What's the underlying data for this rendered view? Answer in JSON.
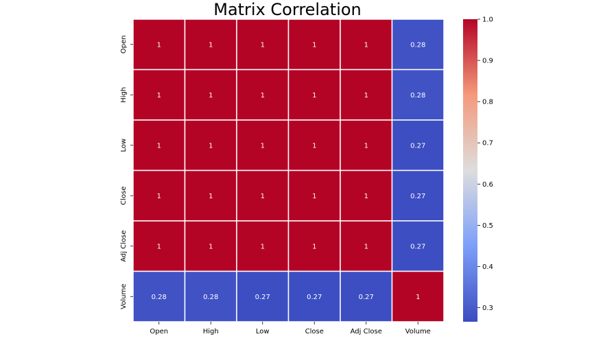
{
  "chart_data": {
    "type": "heatmap",
    "title": "Matrix Correlation",
    "x_labels": [
      "Open",
      "High",
      "Low",
      "Close",
      "Adj Close",
      "Volume"
    ],
    "y_labels": [
      "Open",
      "High",
      "Low",
      "Close",
      "Adj Close",
      "Volume"
    ],
    "values": [
      [
        1,
        1,
        1,
        1,
        1,
        0.28
      ],
      [
        1,
        1,
        1,
        1,
        1,
        0.28
      ],
      [
        1,
        1,
        1,
        1,
        1,
        0.27
      ],
      [
        1,
        1,
        1,
        1,
        1,
        0.27
      ],
      [
        1,
        1,
        1,
        1,
        1,
        0.27
      ],
      [
        0.28,
        0.28,
        0.27,
        0.27,
        0.27,
        1
      ]
    ],
    "cell_labels": [
      [
        "1",
        "1",
        "1",
        "1",
        "1",
        "0.28"
      ],
      [
        "1",
        "1",
        "1",
        "1",
        "1",
        "0.28"
      ],
      [
        "1",
        "1",
        "1",
        "1",
        "1",
        "0.27"
      ],
      [
        "1",
        "1",
        "1",
        "1",
        "1",
        "0.27"
      ],
      [
        "1",
        "1",
        "1",
        "1",
        "1",
        "0.27"
      ],
      [
        "0.28",
        "0.28",
        "0.27",
        "0.27",
        "0.27",
        "1"
      ]
    ],
    "colormap": "coolwarm",
    "colors": {
      "high": "#b40426",
      "mid": "#dddddd",
      "low": "#3b4cc0",
      "grid": "#ffffff"
    },
    "colorbar": {
      "range": [
        0.266,
        1.0
      ],
      "ticks": [
        0.3,
        0.4,
        0.5,
        0.6,
        0.7,
        0.8,
        0.9,
        1.0
      ],
      "tick_labels": [
        "0.3",
        "0.4",
        "0.5",
        "0.6",
        "0.7",
        "0.8",
        "0.9",
        "1.0"
      ]
    }
  }
}
